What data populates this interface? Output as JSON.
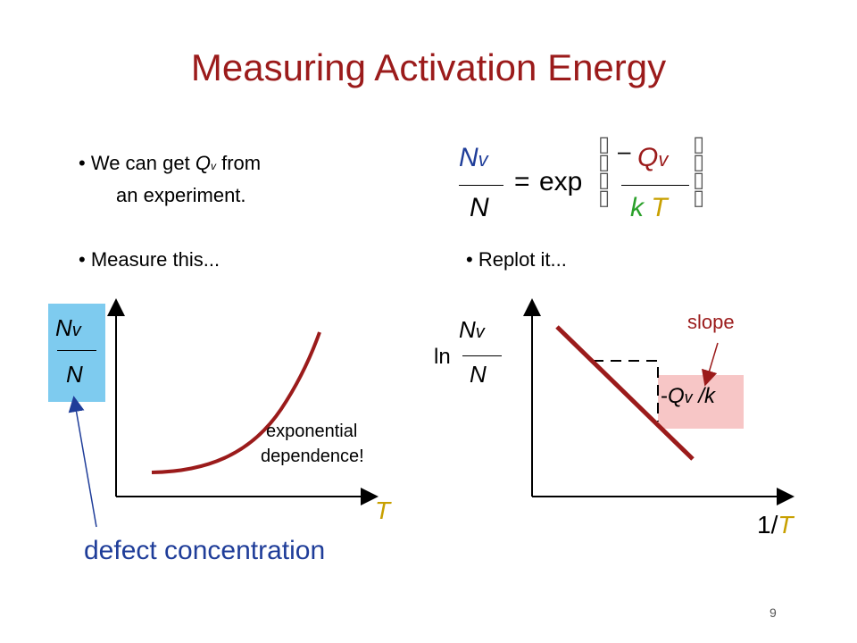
{
  "title": "Measuring Activation Energy",
  "bullets": {
    "b1_pre": "We can get",
    "b1_var": "Q",
    "b1_sub": "v",
    "b1_post": "from",
    "b1_line2": "an experiment.",
    "measure": "Measure this...",
    "replot": "Replot it..."
  },
  "equation": {
    "lhs_num": "N",
    "lhs_num_sub": "v",
    "lhs_den": "N",
    "equals": "=",
    "func": "exp",
    "minus": "–",
    "rhs_num": "Q",
    "rhs_num_sub": "v",
    "rhs_den_k": "k",
    "rhs_den_T": "T",
    "box_glyph": "▯"
  },
  "left_plot": {
    "ylabel_num": "N",
    "ylabel_sub": "v",
    "ylabel_den": "N",
    "xlabel": "T",
    "annotation_line1": "exponential",
    "annotation_line2": "dependence!",
    "callout": "defect concentration",
    "label_bg": "#7ecbef",
    "curve_color": "#9b1b1b",
    "arrow_color": "#1f3d99"
  },
  "right_plot": {
    "ln": "ln",
    "ylabel_num": "N",
    "ylabel_sub": "v",
    "ylabel_den": "N",
    "xlabel_one": "1/",
    "xlabel_T": "T",
    "slope_label": "slope",
    "slope_minus": "-",
    "slope_Q": "Q",
    "slope_sub": "v",
    "slope_rest": "/k",
    "slope_box_bg": "#f7c6c6",
    "line_color": "#9b1b1b"
  },
  "page_number": "9"
}
